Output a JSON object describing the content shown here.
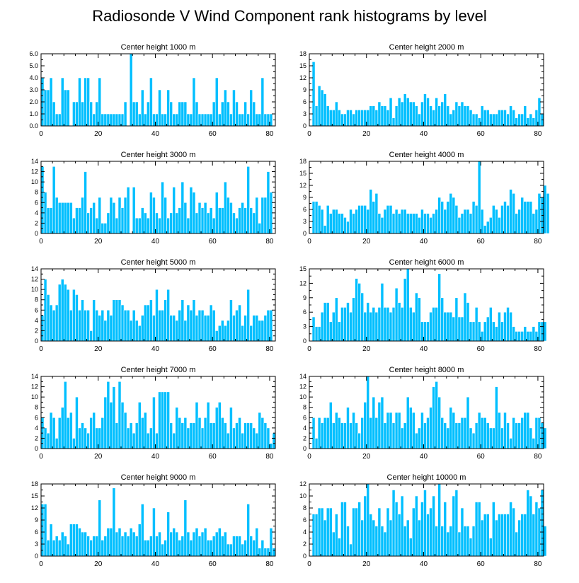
{
  "title": "Radiosonde V Wind Component rank histograms by level",
  "colors": {
    "bar": "#00bfff",
    "bar_edge": "#ffffff",
    "axis": "#000000"
  },
  "chart_data": [
    {
      "type": "bar",
      "title": "Center height 1000 m",
      "ylim": [
        0,
        6
      ],
      "yticks": [
        "0.0",
        "1.0",
        "2.0",
        "3.0",
        "4.0",
        "5.0",
        "6.0"
      ],
      "xticks": [
        "0",
        "20",
        "40",
        "60",
        "80"
      ],
      "x_start": 0,
      "values": [
        4,
        3,
        3,
        4,
        2,
        1,
        1,
        4,
        3,
        3,
        0,
        2,
        2,
        4,
        2,
        4,
        4,
        2,
        1,
        2,
        4,
        1,
        1,
        1,
        1,
        1,
        1,
        1,
        1,
        2,
        0,
        6,
        2,
        2,
        1,
        3,
        1,
        2,
        4,
        1,
        1,
        3,
        1,
        1,
        3,
        2,
        1,
        1,
        2,
        2,
        2,
        1,
        1,
        4,
        2,
        1,
        1,
        1,
        1,
        1,
        2,
        4,
        1,
        2,
        3,
        2,
        1,
        3,
        2,
        1,
        1,
        2,
        1,
        3,
        2,
        1,
        1,
        4,
        1,
        1,
        1
      ]
    },
    {
      "type": "bar",
      "title": "Center height 2000 m",
      "ylim": [
        0,
        18
      ],
      "yticks": [
        "0",
        "3",
        "6",
        "9",
        "12",
        "15",
        "18"
      ],
      "xticks": [
        "0",
        "20",
        "40",
        "60",
        "80"
      ],
      "x_start": 1,
      "values": [
        16,
        5,
        10,
        9,
        8,
        5,
        4,
        4,
        6,
        4,
        3,
        3,
        4,
        4,
        3,
        4,
        4,
        4,
        4,
        4,
        5,
        5,
        4,
        6,
        5,
        5,
        4,
        7,
        2,
        5,
        7,
        6,
        8,
        7,
        6,
        6,
        5,
        3,
        6,
        8,
        7,
        5,
        4,
        7,
        5,
        6,
        8,
        5,
        3,
        4,
        6,
        5,
        6,
        5,
        5,
        4,
        3,
        3,
        2,
        5,
        4,
        4,
        3,
        3,
        3,
        4,
        4,
        4,
        3,
        5,
        4,
        2,
        3,
        3,
        5,
        2,
        3,
        2,
        4,
        7,
        3
      ]
    },
    {
      "type": "bar",
      "title": "Center height 3000 m",
      "ylim": [
        0,
        14
      ],
      "yticks": [
        "0",
        "2",
        "4",
        "6",
        "8",
        "10",
        "12",
        "14"
      ],
      "xticks": [
        "0",
        "20",
        "40",
        "60",
        "80"
      ],
      "x_start": 0,
      "values": [
        13,
        8,
        5,
        5,
        13,
        7,
        6,
        6,
        6,
        6,
        6,
        3,
        5,
        5,
        7,
        12,
        4,
        5,
        6,
        3,
        7,
        2,
        2,
        4,
        7,
        6,
        3,
        7,
        5,
        7,
        9,
        0,
        9,
        3,
        3,
        5,
        4,
        3,
        8,
        7,
        4,
        3,
        10,
        7,
        3,
        4,
        9,
        4,
        5,
        10,
        6,
        3,
        9,
        8,
        4,
        6,
        5,
        6,
        4,
        5,
        3,
        8,
        5,
        5,
        10,
        7,
        6,
        4,
        3,
        5,
        6,
        5,
        13,
        5,
        4,
        7,
        2,
        7,
        7,
        12,
        8
      ]
    },
    {
      "type": "bar",
      "title": "Center height 4000 m",
      "ylim": [
        0,
        18
      ],
      "yticks": [
        "0",
        "3",
        "6",
        "9",
        "12",
        "15",
        "18"
      ],
      "xticks": [
        "0",
        "20",
        "40",
        "60",
        "80"
      ],
      "x_start": 1,
      "values": [
        8,
        8,
        7,
        6,
        2,
        7,
        5,
        6,
        6,
        5,
        5,
        4,
        3,
        6,
        5,
        6,
        7,
        7,
        7,
        6,
        11,
        8,
        10,
        5,
        4,
        6,
        7,
        7,
        5,
        6,
        5,
        6,
        6,
        5,
        5,
        5,
        5,
        4,
        6,
        5,
        5,
        4,
        5,
        6,
        9,
        8,
        6,
        8,
        10,
        9,
        7,
        4,
        5,
        6,
        6,
        5,
        8,
        7,
        18,
        6,
        2,
        3,
        4,
        7,
        6,
        4,
        7,
        8,
        7,
        11,
        10,
        5,
        6,
        9,
        8,
        8,
        8,
        5,
        6,
        10,
        9,
        12,
        10
      ]
    },
    {
      "type": "bar",
      "title": "Center height 5000 m",
      "ylim": [
        0,
        14
      ],
      "yticks": [
        "0",
        "2",
        "4",
        "6",
        "8",
        "10",
        "12",
        "14"
      ],
      "xticks": [
        "0",
        "20",
        "40",
        "60",
        "80"
      ],
      "x_start": 0,
      "values": [
        5,
        12,
        9,
        7,
        6,
        7,
        11,
        12,
        11,
        10,
        6,
        10,
        9,
        6,
        8,
        6,
        6,
        2,
        8,
        6,
        5,
        6,
        4,
        6,
        5,
        8,
        8,
        8,
        7,
        6,
        6,
        4,
        6,
        4,
        3,
        5,
        7,
        7,
        8,
        5,
        10,
        6,
        6,
        8,
        10,
        5,
        5,
        4,
        6,
        8,
        4,
        7,
        6,
        8,
        5,
        6,
        6,
        5,
        5,
        7,
        6,
        2,
        3,
        4,
        3,
        4,
        8,
        5,
        6,
        7,
        3,
        5,
        10,
        3,
        5,
        5,
        4,
        4,
        5,
        6,
        6
      ]
    },
    {
      "type": "bar",
      "title": "Center height 6000 m",
      "ylim": [
        0,
        15
      ],
      "yticks": [
        "0",
        "3",
        "6",
        "9",
        "12",
        "15"
      ],
      "xticks": [
        "0",
        "20",
        "40",
        "60",
        "80"
      ],
      "x_start": 1,
      "values": [
        5,
        3,
        3,
        6,
        8,
        8,
        4,
        6,
        9,
        4,
        7,
        7,
        8,
        6,
        9,
        13,
        12,
        10,
        6,
        8,
        6,
        7,
        6,
        7,
        12,
        7,
        7,
        6,
        7,
        11,
        8,
        7,
        13,
        15,
        7,
        6,
        10,
        9,
        4,
        4,
        4,
        6,
        7,
        7,
        14,
        9,
        6,
        6,
        6,
        5,
        9,
        5,
        5,
        10,
        8,
        4,
        4,
        7,
        4,
        2,
        4,
        5,
        7,
        4,
        3,
        6,
        4,
        6,
        7,
        6,
        3,
        2,
        2,
        2,
        3,
        2,
        2,
        3,
        2,
        4,
        4,
        4
      ]
    },
    {
      "type": "bar",
      "title": "Center height 7000 m",
      "ylim": [
        0,
        14
      ],
      "yticks": [
        "0",
        "2",
        "4",
        "6",
        "8",
        "10",
        "12",
        "14"
      ],
      "xticks": [
        "0",
        "20",
        "40",
        "60",
        "80"
      ],
      "x_start": 0,
      "values": [
        6,
        4,
        3,
        7,
        6,
        2,
        6,
        8,
        13,
        6,
        7,
        2,
        10,
        4,
        5,
        4,
        3,
        6,
        7,
        4,
        4,
        6,
        10,
        13,
        9,
        12,
        5,
        13,
        9,
        7,
        4,
        5,
        3,
        5,
        9,
        6,
        7,
        3,
        4,
        10,
        3,
        11,
        11,
        11,
        11,
        5,
        3,
        8,
        6,
        5,
        6,
        4,
        5,
        5,
        9,
        6,
        4,
        6,
        9,
        5,
        5,
        8,
        9,
        6,
        5,
        3,
        8,
        4,
        5,
        6,
        3,
        5,
        5,
        5,
        4,
        3,
        7,
        6,
        5,
        4,
        1,
        3
      ]
    },
    {
      "type": "bar",
      "title": "Center height 8000 m",
      "ylim": [
        0,
        14
      ],
      "yticks": [
        "0",
        "2",
        "4",
        "6",
        "8",
        "10",
        "12",
        "14"
      ],
      "xticks": [
        "0",
        "20",
        "40",
        "60",
        "80"
      ],
      "x_start": 1,
      "values": [
        6,
        2,
        6,
        5,
        6,
        6,
        9,
        5,
        7,
        6,
        5,
        5,
        8,
        5,
        7,
        5,
        3,
        6,
        9,
        14,
        6,
        10,
        6,
        9,
        10,
        5,
        7,
        7,
        5,
        7,
        7,
        4,
        5,
        10,
        8,
        7,
        3,
        4,
        7,
        5,
        6,
        8,
        12,
        13,
        10,
        6,
        5,
        4,
        8,
        7,
        5,
        5,
        6,
        6,
        10,
        4,
        3,
        5,
        7,
        6,
        6,
        5,
        4,
        4,
        12,
        7,
        4,
        7,
        5,
        2,
        6,
        5,
        5,
        6,
        7,
        7,
        4,
        2,
        6,
        6,
        5,
        4
      ]
    },
    {
      "type": "bar",
      "title": "Center height 9000 m",
      "ylim": [
        0,
        18
      ],
      "yticks": [
        "0",
        "3",
        "6",
        "9",
        "12",
        "15",
        "18"
      ],
      "xticks": [
        "0",
        "20",
        "40",
        "60",
        "80"
      ],
      "x_start": 0,
      "values": [
        13,
        13,
        4,
        8,
        4,
        5,
        4,
        6,
        5,
        3,
        8,
        8,
        8,
        7,
        6,
        6,
        5,
        4,
        5,
        5,
        14,
        4,
        5,
        7,
        7,
        17,
        6,
        7,
        5,
        6,
        5,
        7,
        6,
        5,
        8,
        13,
        4,
        4,
        5,
        12,
        5,
        6,
        3,
        4,
        11,
        6,
        7,
        6,
        4,
        5,
        14,
        6,
        4,
        6,
        7,
        5,
        6,
        7,
        4,
        4,
        5,
        6,
        7,
        5,
        6,
        3,
        3,
        5,
        5,
        5,
        3,
        4,
        13,
        5,
        4,
        7,
        2,
        4,
        2,
        2,
        7,
        2
      ]
    },
    {
      "type": "bar",
      "title": "Center height 10000 m",
      "ylim": [
        0,
        12
      ],
      "yticks": [
        "0",
        "2",
        "4",
        "6",
        "8",
        "10",
        "12"
      ],
      "xticks": [
        "0",
        "20",
        "40",
        "60",
        "80"
      ],
      "x_start": 1,
      "values": [
        7,
        7,
        8,
        8,
        6,
        8,
        8,
        4,
        7,
        3,
        9,
        9,
        5,
        2,
        8,
        8,
        9,
        6,
        10,
        12,
        7,
        6,
        5,
        8,
        5,
        4,
        8,
        6,
        11,
        9,
        7,
        10,
        5,
        6,
        3,
        8,
        10,
        6,
        9,
        11,
        7,
        8,
        10,
        5,
        12,
        5,
        9,
        4,
        5,
        10,
        11,
        4,
        8,
        5,
        5,
        3,
        5,
        9,
        9,
        6,
        7,
        7,
        3,
        9,
        6,
        7,
        7,
        7,
        7,
        9,
        8,
        4,
        6,
        7,
        7,
        11,
        10,
        7,
        9,
        8,
        11,
        5
      ]
    }
  ]
}
